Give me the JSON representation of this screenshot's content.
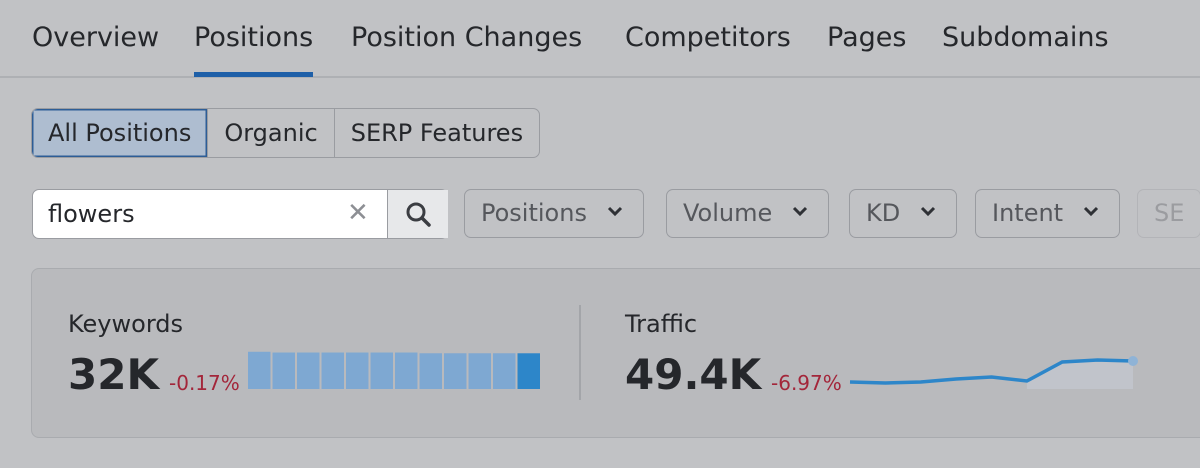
{
  "tabs": [
    "Overview",
    "Positions",
    "Position Changes",
    "Competitors",
    "Pages",
    "Subdomains"
  ],
  "active_tab": 1,
  "segments": [
    "All Positions",
    "Organic",
    "SERP Features"
  ],
  "active_segment": 0,
  "search": {
    "value": "flowers"
  },
  "filters": [
    "Positions",
    "Volume",
    "KD",
    "Intent",
    "SE"
  ],
  "metrics": [
    {
      "label": "Keywords",
      "value": "32K",
      "change": "-0.17%",
      "chart": {
        "type": "bar",
        "color": "#7ea8d2",
        "last_color": "#2d86c9",
        "values": [
          98,
          96,
          96,
          96,
          96,
          96,
          96,
          94,
          94,
          94,
          94,
          94
        ]
      }
    },
    {
      "label": "Traffic",
      "value": "49.4K",
      "change": "-6.97%",
      "chart": {
        "type": "line",
        "color": "#2d86c9",
        "values": [
          2,
          1,
          2,
          5,
          7,
          3,
          22,
          24,
          23
        ]
      }
    }
  ]
}
